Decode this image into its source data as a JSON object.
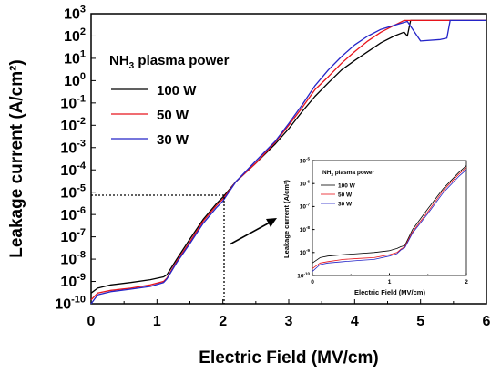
{
  "chart_data": [
    {
      "type": "line",
      "xlabel": "Electric Field (MV/cm)",
      "ylabel": "Leakage current (A/cm²)",
      "xlim": [
        0,
        6
      ],
      "ylim": [
        1e-10,
        1000
      ],
      "yscale": "log",
      "xticks": [
        0,
        1,
        2,
        3,
        4,
        5,
        6
      ],
      "xtick_labels": [
        "0",
        "1",
        "2",
        "3",
        "4",
        "5",
        "6"
      ],
      "ytick_mantissa": "10",
      "ytick_exponents": [
        "-10",
        "-9",
        "-8",
        "-7",
        "-6",
        "-5",
        "-4",
        "-3",
        "-2",
        "-1",
        "0",
        "1",
        "2",
        "3"
      ],
      "legend_title_parts": [
        "NH",
        "3",
        " plasma power"
      ],
      "legend_position": "upper-left",
      "series": [
        {
          "name": "100 W",
          "color": "#000000",
          "x": [
            0,
            0.1,
            0.3,
            0.6,
            0.9,
            1.1,
            1.15,
            1.3,
            1.5,
            1.7,
            1.9,
            2.0,
            2.2,
            2.5,
            2.8,
            3.0,
            3.2,
            3.4,
            3.6,
            3.8,
            4.0,
            4.2,
            4.4,
            4.6,
            4.75,
            4.8,
            4.85,
            5.0,
            5.5,
            6.0
          ],
          "y": [
            3e-10,
            5e-10,
            7e-10,
            9e-10,
            1.2e-09,
            1.6e-09,
            2e-09,
            1e-08,
            8e-08,
            6e-07,
            3e-06,
            6e-06,
            3e-05,
            0.0002,
            0.0015,
            0.007,
            0.04,
            0.2,
            0.8,
            3,
            8,
            20,
            50,
            100,
            150,
            100,
            500,
            500,
            500,
            500
          ]
        },
        {
          "name": "50 W",
          "color": "#e8141c",
          "x": [
            0,
            0.1,
            0.3,
            0.6,
            0.9,
            1.1,
            1.15,
            1.3,
            1.5,
            1.7,
            1.9,
            2.0,
            2.2,
            2.5,
            2.8,
            3.0,
            3.2,
            3.4,
            3.6,
            3.8,
            4.0,
            4.2,
            4.4,
            4.6,
            4.75,
            4.8,
            4.85,
            5.0,
            5.5,
            6.0
          ],
          "y": [
            1.5e-10,
            3e-10,
            4e-10,
            5e-10,
            7e-10,
            1e-09,
            1.4e-09,
            8e-09,
            6e-08,
            5e-07,
            2.5e-06,
            5e-06,
            3e-05,
            0.0002,
            0.0018,
            0.01,
            0.06,
            0.4,
            1.5,
            6,
            20,
            60,
            150,
            300,
            500,
            500,
            500,
            500,
            500,
            500
          ]
        },
        {
          "name": "30 W",
          "color": "#2424c8",
          "x": [
            0,
            0.1,
            0.3,
            0.6,
            0.9,
            1.1,
            1.15,
            1.3,
            1.5,
            1.7,
            1.9,
            2.0,
            2.2,
            2.5,
            2.8,
            3.0,
            3.2,
            3.4,
            3.6,
            3.8,
            4.0,
            4.2,
            4.4,
            4.6,
            4.8,
            5.0,
            5.3,
            5.4,
            5.45,
            5.5,
            6.0
          ],
          "y": [
            1e-10,
            2.5e-10,
            3.5e-10,
            4.5e-10,
            6e-10,
            9e-10,
            1.3e-09,
            7e-09,
            5e-08,
            4e-07,
            2e-06,
            4e-06,
            3e-05,
            0.00025,
            0.002,
            0.012,
            0.08,
            0.6,
            3,
            12,
            40,
            100,
            200,
            300,
            450,
            60,
            70,
            80,
            500,
            500,
            500
          ]
        }
      ]
    },
    {
      "type": "line",
      "xlabel": "Electric Field (MV/cm)",
      "ylabel": "Leakage current (A/cm²)",
      "xlim": [
        0,
        2
      ],
      "ylim": [
        1e-10,
        1e-05
      ],
      "yscale": "log",
      "xticks": [
        0,
        1,
        2
      ],
      "xtick_labels": [
        "0",
        "1",
        "2"
      ],
      "ytick_mantissa": "10",
      "ytick_exponents": [
        "-10",
        "-9",
        "-8",
        "-7",
        "-6",
        "-5"
      ],
      "legend_title_parts": [
        "NH",
        "3",
        " plasma power"
      ],
      "legend_position": "upper-left",
      "series": [
        {
          "name": "100 W",
          "color": "#000000",
          "x": [
            0,
            0.1,
            0.2,
            0.4,
            0.6,
            0.8,
            1.0,
            1.1,
            1.15,
            1.2,
            1.3,
            1.5,
            1.7,
            1.9,
            2.0
          ],
          "y": [
            3.5e-10,
            6e-10,
            7e-10,
            8e-10,
            9e-10,
            1e-09,
            1.2e-09,
            1.5e-09,
            1.8e-09,
            2e-09,
            1e-08,
            8e-08,
            6e-07,
            3e-06,
            6e-06
          ]
        },
        {
          "name": "50 W",
          "color": "#e8141c",
          "x": [
            0,
            0.1,
            0.2,
            0.4,
            0.6,
            0.8,
            1.0,
            1.1,
            1.15,
            1.2,
            1.3,
            1.5,
            1.7,
            1.9,
            2.0
          ],
          "y": [
            2e-10,
            3.5e-10,
            4e-10,
            5e-10,
            5.5e-10,
            6e-10,
            8e-10,
            1e-09,
            1.4e-09,
            1.8e-09,
            8e-09,
            6e-08,
            5e-07,
            2.5e-06,
            5e-06
          ]
        },
        {
          "name": "30 W",
          "color": "#2424c8",
          "x": [
            0,
            0.1,
            0.2,
            0.4,
            0.6,
            0.8,
            1.0,
            1.1,
            1.15,
            1.2,
            1.3,
            1.5,
            1.7,
            1.9,
            2.0
          ],
          "y": [
            1.5e-10,
            3e-10,
            3.5e-10,
            4e-10,
            4.5e-10,
            5e-10,
            7e-10,
            9e-10,
            1.3e-09,
            1.6e-09,
            7e-09,
            5e-08,
            4e-07,
            2e-06,
            4e-06
          ]
        }
      ]
    }
  ]
}
